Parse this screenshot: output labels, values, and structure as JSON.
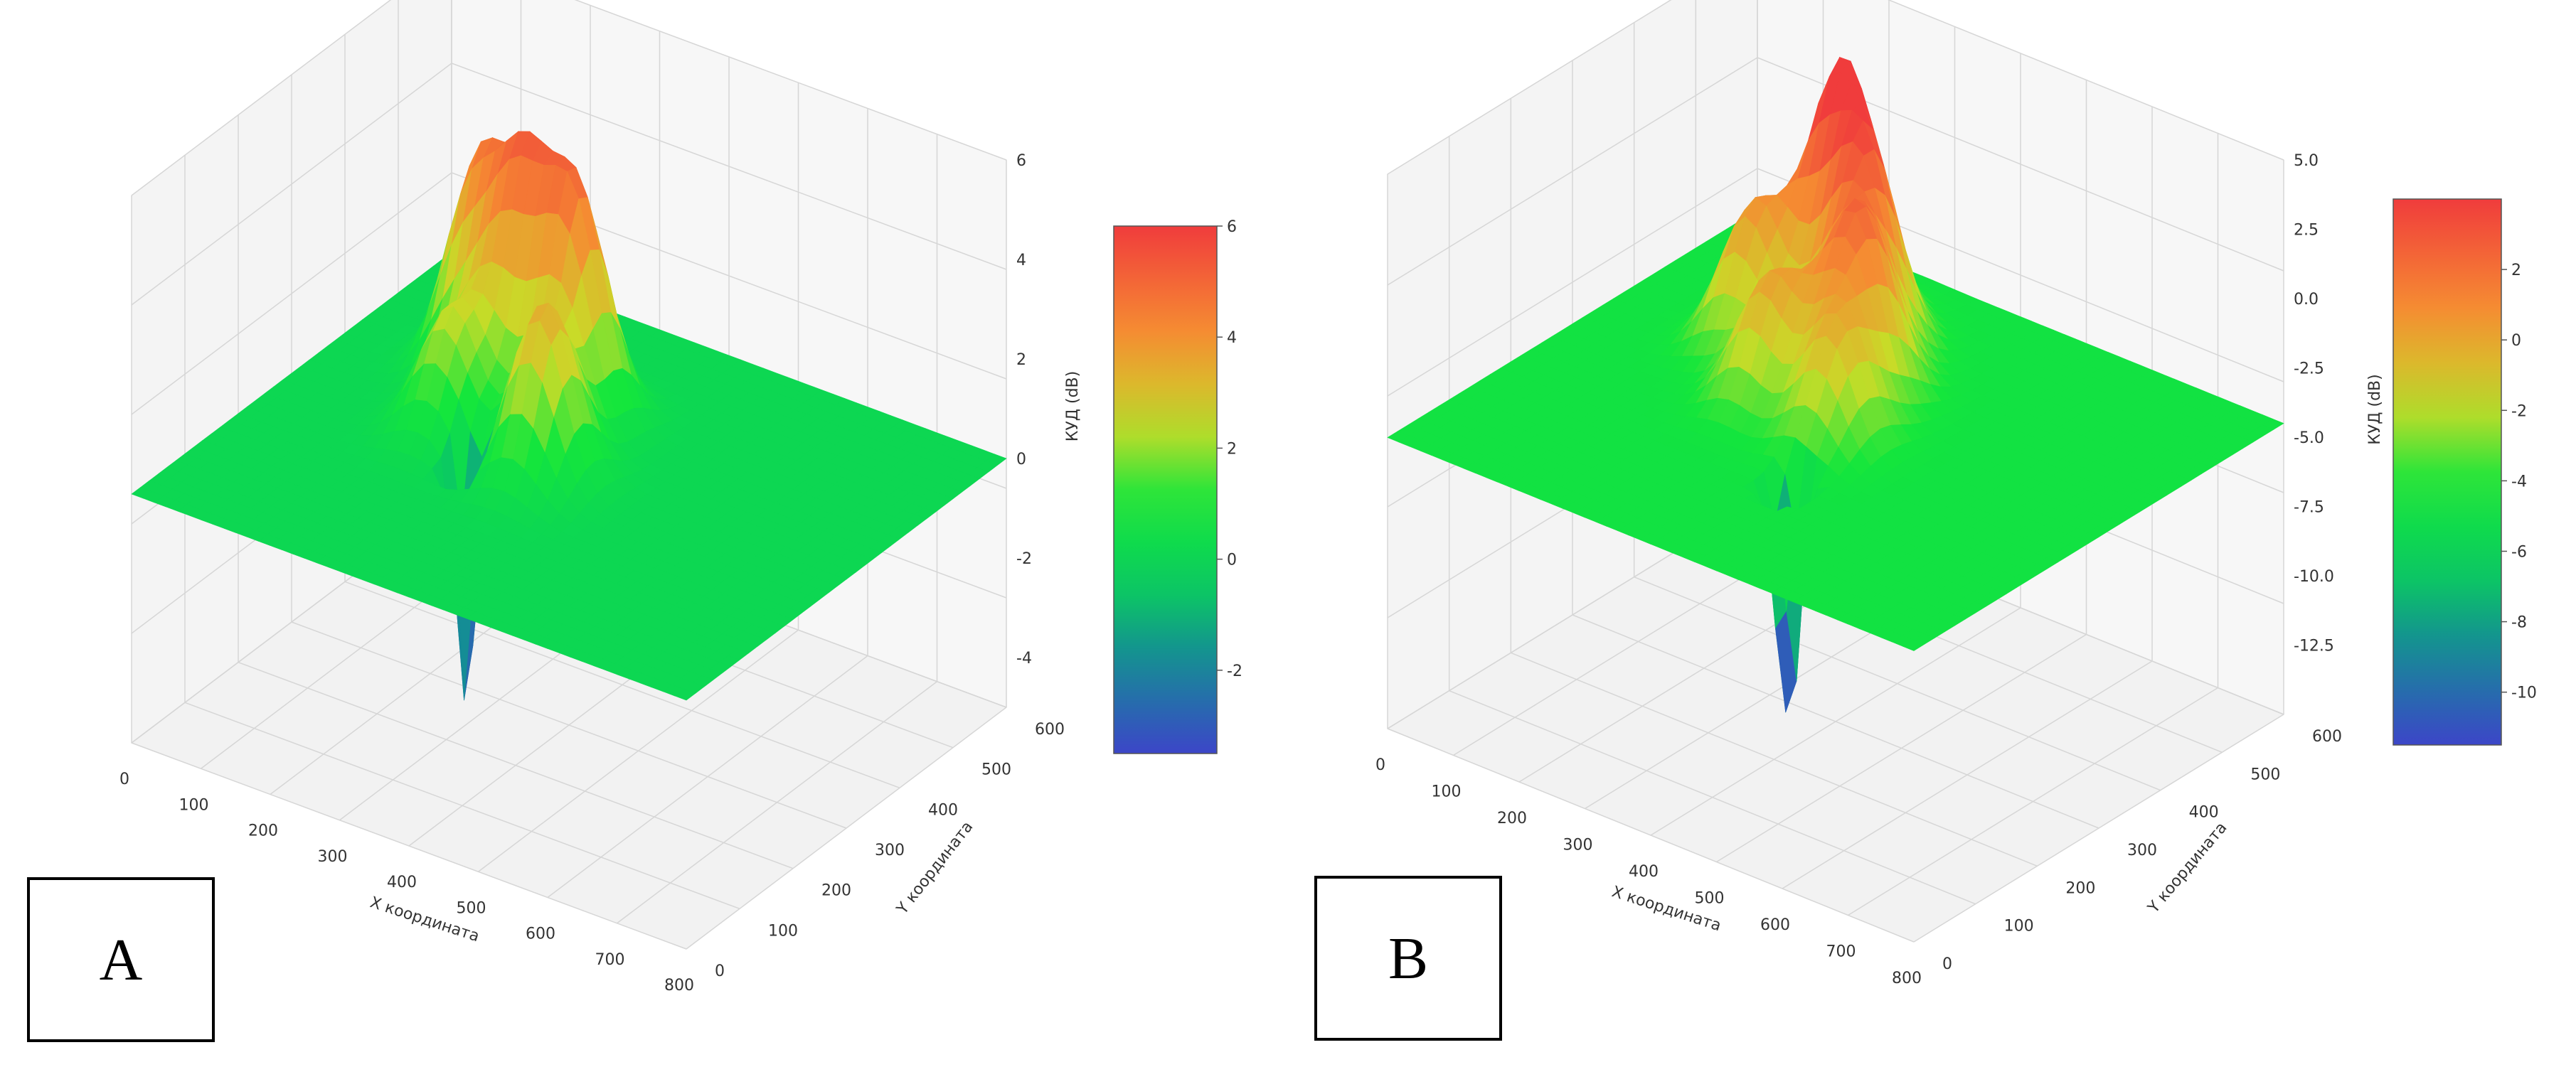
{
  "panels": [
    {
      "label": "A",
      "chart_data": {
        "type": "surface3d",
        "xlabel": "X координата",
        "ylabel": "Y координата",
        "zlabel": "КУД (dB)",
        "x_ticks": [
          "0",
          "100",
          "200",
          "300",
          "400",
          "500",
          "600",
          "700",
          "800"
        ],
        "y_ticks": [
          "0",
          "100",
          "200",
          "300",
          "400",
          "500",
          "600"
        ],
        "z_ticks": [
          "6",
          "4",
          "2",
          "0",
          "-2",
          "-4"
        ],
        "colorbar_ticks": [
          "6",
          "4",
          "2",
          "0",
          "-2"
        ],
        "xlim": [
          0,
          800
        ],
        "ylim": [
          0,
          600
        ],
        "zlim": [
          -5,
          6
        ],
        "colorbar_range": [
          -3.5,
          6
        ],
        "baseline": 0,
        "peaks": [
          {
            "x": 180,
            "y": 420,
            "z": 4.1
          },
          {
            "x": 260,
            "y": 400,
            "z": 4.4
          },
          {
            "x": 340,
            "y": 390,
            "z": 4.5
          },
          {
            "x": 380,
            "y": 280,
            "z": 3.5
          },
          {
            "x": 230,
            "y": 300,
            "z": 2.4
          }
        ],
        "dips": [
          {
            "x": 300,
            "y": 240,
            "z": -5.5
          }
        ]
      }
    },
    {
      "label": "B",
      "chart_data": {
        "type": "surface3d",
        "xlabel": "X координата",
        "ylabel": "Y координата",
        "zlabel": "КУД (dB)",
        "x_ticks": [
          "0",
          "100",
          "200",
          "300",
          "400",
          "500",
          "600",
          "700",
          "800"
        ],
        "y_ticks": [
          "0",
          "100",
          "200",
          "300",
          "400",
          "500",
          "600"
        ],
        "z_ticks": [
          "5.0",
          "2.5",
          "0.0",
          "-2.5",
          "-5.0",
          "-7.5",
          "-10.0",
          "-12.5"
        ],
        "colorbar_ticks": [
          "2",
          "0",
          "-2",
          "-4",
          "-6",
          "-8",
          "-10"
        ],
        "xlim": [
          0,
          800
        ],
        "ylim": [
          0,
          600
        ],
        "zlim": [
          -15,
          5
        ],
        "colorbar_range": [
          -11.5,
          4
        ],
        "baseline": -4.5,
        "peaks": [
          {
            "x": 250,
            "y": 470,
            "z": 4.2
          },
          {
            "x": 320,
            "y": 430,
            "z": 2.5
          },
          {
            "x": 380,
            "y": 360,
            "z": 1.8
          },
          {
            "x": 200,
            "y": 380,
            "z": 0.5
          },
          {
            "x": 300,
            "y": 300,
            "z": 0.0
          },
          {
            "x": 420,
            "y": 280,
            "z": -0.5
          }
        ],
        "dips": [
          {
            "x": 440,
            "y": 180,
            "z": -14.5
          }
        ]
      }
    }
  ]
}
